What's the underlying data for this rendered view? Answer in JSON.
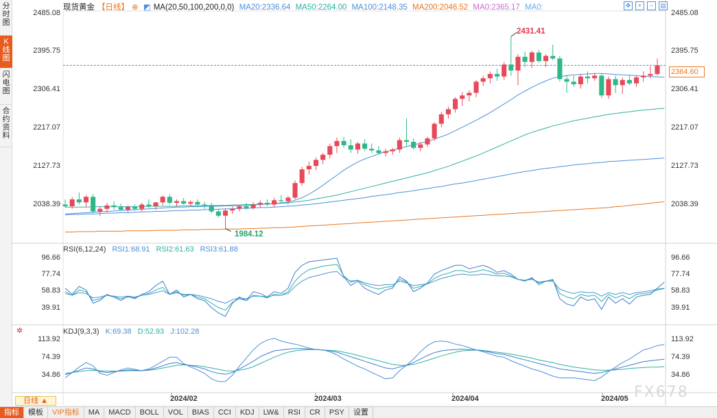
{
  "side_tabs": [
    {
      "label": "分时图",
      "chars": [
        "分",
        "时",
        "图"
      ],
      "active": false
    },
    {
      "label": "K线图",
      "chars": [
        "K",
        "线",
        "图"
      ],
      "active": true
    },
    {
      "label": "闪电图",
      "chars": [
        "闪",
        "电",
        "图"
      ],
      "active": false
    },
    {
      "label": "合约资料",
      "chars": [
        "合",
        "约",
        "资",
        "料"
      ],
      "active": false
    }
  ],
  "header": {
    "title": "现货黄金",
    "period": "【日线】",
    "ma_settings": "MA(20,50,100,200,0,0)",
    "ma20": "MA20:2336.64",
    "ma50": "MA50:2264.00",
    "ma100": "MA100:2148.35",
    "ma200": "MA200:2046.52",
    "ma0a": "MA0:2365.17",
    "ma0b": "MA0:"
  },
  "toolbar_icons": [
    "move-icon",
    "zoom-in-icon",
    "zoom-out-icon",
    "settings-icon"
  ],
  "price_axis": {
    "labels": [
      "2485.08",
      "2395.75",
      "2306.41",
      "2217.07",
      "2127.73",
      "2038.39"
    ],
    "current_price": "2364.60"
  },
  "annotations": {
    "high": "2431.41",
    "low": "1984.12"
  },
  "rsi": {
    "title": "RSI(6,12,24)",
    "rsi1": "RSI1:68.91",
    "rsi2": "RSI2:61.63",
    "rsi3": "RSI3:61.88",
    "axis": [
      "96.66",
      "77.74",
      "58.83",
      "39.91"
    ]
  },
  "kdj": {
    "title": "KDJ(9,3,3)",
    "k": "K:69.38",
    "d": "D:52.93",
    "j": "J:102.28",
    "axis": [
      "113.92",
      "74.39",
      "34.86"
    ]
  },
  "x_dates": [
    "2024/02",
    "2024/03",
    "2024/04",
    "2024/05"
  ],
  "period_button": "日线 ▲",
  "bottom_tabs": [
    {
      "label": "指标",
      "active": true,
      "vip": false
    },
    {
      "label": "模板",
      "active": false,
      "vip": false
    },
    {
      "label": "VIP指标",
      "active": false,
      "vip": true
    },
    {
      "label": "MA",
      "active": false,
      "vip": false
    },
    {
      "label": "MACD",
      "active": false,
      "vip": false
    },
    {
      "label": "BOLL",
      "active": false,
      "vip": false
    },
    {
      "label": "VOL",
      "active": false,
      "vip": false
    },
    {
      "label": "BIAS",
      "active": false,
      "vip": false
    },
    {
      "label": "CCI",
      "active": false,
      "vip": false
    },
    {
      "label": "KDJ",
      "active": false,
      "vip": false
    },
    {
      "label": "LW&",
      "active": false,
      "vip": false
    },
    {
      "label": "RSI",
      "active": false,
      "vip": false
    },
    {
      "label": "CR",
      "active": false,
      "vip": false
    },
    {
      "label": "PSY",
      "active": false,
      "vip": false
    },
    {
      "label": "设置",
      "active": false,
      "vip": false
    }
  ],
  "watermark": "FX678",
  "colors": {
    "up": "#e8495a",
    "down": "#2eb88a",
    "ma20": "#4a8fd8",
    "ma50": "#28b0a0",
    "ma100": "#4a8fd8",
    "ma200": "#e8761f",
    "accent": "#e85b1f"
  },
  "chart_data": {
    "type": "candlestick",
    "instrument": "现货黄金",
    "period": "日线",
    "ylim": [
      1965,
      2490
    ],
    "candles": [
      [
        2040,
        2052,
        2032,
        2036
      ],
      [
        2036,
        2058,
        2030,
        2052
      ],
      [
        2052,
        2068,
        2040,
        2045
      ],
      [
        2045,
        2062,
        2035,
        2058
      ],
      [
        2058,
        2065,
        2020,
        2024
      ],
      [
        2024,
        2035,
        2014,
        2030
      ],
      [
        2030,
        2044,
        2022,
        2038
      ],
      [
        2038,
        2048,
        2028,
        2034
      ],
      [
        2034,
        2042,
        2025,
        2028
      ],
      [
        2028,
        2038,
        2022,
        2035
      ],
      [
        2035,
        2040,
        2026,
        2030
      ],
      [
        2030,
        2044,
        2024,
        2040
      ],
      [
        2040,
        2052,
        2032,
        2036
      ],
      [
        2036,
        2046,
        2028,
        2045
      ],
      [
        2045,
        2062,
        2038,
        2058
      ],
      [
        2058,
        2064,
        2040,
        2044
      ],
      [
        2044,
        2052,
        2035,
        2048
      ],
      [
        2048,
        2055,
        2040,
        2042
      ],
      [
        2042,
        2050,
        2035,
        2046
      ],
      [
        2046,
        2052,
        2038,
        2040
      ],
      [
        2040,
        2046,
        2030,
        2038
      ],
      [
        2038,
        2044,
        2020,
        2024
      ],
      [
        2024,
        2030,
        2010,
        2014
      ],
      [
        2014,
        2030,
        1984,
        2026
      ],
      [
        2026,
        2035,
        2018,
        2030
      ],
      [
        2030,
        2040,
        2024,
        2036
      ],
      [
        2036,
        2044,
        2028,
        2032
      ],
      [
        2032,
        2046,
        2028,
        2040
      ],
      [
        2040,
        2050,
        2032,
        2044
      ],
      [
        2044,
        2052,
        2036,
        2040
      ],
      [
        2040,
        2056,
        2034,
        2050
      ],
      [
        2050,
        2062,
        2044,
        2048
      ],
      [
        2048,
        2060,
        2040,
        2056
      ],
      [
        2056,
        2096,
        2052,
        2090
      ],
      [
        2090,
        2128,
        2084,
        2122
      ],
      [
        2122,
        2140,
        2110,
        2130
      ],
      [
        2130,
        2150,
        2120,
        2144
      ],
      [
        2144,
        2160,
        2134,
        2156
      ],
      [
        2156,
        2182,
        2148,
        2176
      ],
      [
        2176,
        2196,
        2160,
        2188
      ],
      [
        2188,
        2198,
        2172,
        2178
      ],
      [
        2178,
        2192,
        2160,
        2168
      ],
      [
        2168,
        2186,
        2158,
        2182
      ],
      [
        2182,
        2192,
        2164,
        2170
      ],
      [
        2170,
        2182,
        2160,
        2166
      ],
      [
        2166,
        2176,
        2156,
        2160
      ],
      [
        2160,
        2170,
        2152,
        2164
      ],
      [
        2164,
        2172,
        2156,
        2168
      ],
      [
        2168,
        2196,
        2160,
        2190
      ],
      [
        2190,
        2240,
        2176,
        2186
      ],
      [
        2186,
        2194,
        2168,
        2172
      ],
      [
        2172,
        2186,
        2164,
        2180
      ],
      [
        2180,
        2198,
        2174,
        2194
      ],
      [
        2194,
        2232,
        2188,
        2228
      ],
      [
        2228,
        2256,
        2220,
        2250
      ],
      [
        2250,
        2268,
        2240,
        2262
      ],
      [
        2262,
        2290,
        2254,
        2286
      ],
      [
        2286,
        2302,
        2270,
        2294
      ],
      [
        2294,
        2306,
        2280,
        2300
      ],
      [
        2300,
        2330,
        2290,
        2326
      ],
      [
        2326,
        2340,
        2316,
        2334
      ],
      [
        2334,
        2350,
        2322,
        2344
      ],
      [
        2344,
        2356,
        2328,
        2338
      ],
      [
        2338,
        2372,
        2330,
        2366
      ],
      [
        2366,
        2431,
        2340,
        2352
      ],
      [
        2352,
        2390,
        2318,
        2384
      ],
      [
        2384,
        2396,
        2360,
        2372
      ],
      [
        2372,
        2398,
        2358,
        2394
      ],
      [
        2394,
        2400,
        2370,
        2374
      ],
      [
        2374,
        2390,
        2360,
        2386
      ],
      [
        2386,
        2412,
        2376,
        2380
      ],
      [
        2380,
        2386,
        2326,
        2332
      ],
      [
        2332,
        2342,
        2300,
        2326
      ],
      [
        2326,
        2340,
        2314,
        2320
      ],
      [
        2320,
        2344,
        2310,
        2338
      ],
      [
        2338,
        2350,
        2322,
        2334
      ],
      [
        2334,
        2346,
        2328,
        2340
      ],
      [
        2340,
        2344,
        2288,
        2294
      ],
      [
        2294,
        2338,
        2286,
        2332
      ],
      [
        2332,
        2340,
        2300,
        2318
      ],
      [
        2318,
        2336,
        2298,
        2330
      ],
      [
        2330,
        2342,
        2318,
        2322
      ],
      [
        2322,
        2340,
        2314,
        2336
      ],
      [
        2336,
        2350,
        2326,
        2340
      ],
      [
        2340,
        2362,
        2334,
        2344
      ],
      [
        2344,
        2380,
        2340,
        2364
      ]
    ],
    "ma20": [
      2018,
      2019,
      2020,
      2021,
      2022,
      2023,
      2024,
      2025,
      2026,
      2027,
      2028,
      2029,
      2030,
      2031,
      2032,
      2033,
      2034,
      2034,
      2035,
      2035,
      2036,
      2036,
      2036,
      2037,
      2037,
      2038,
      2038,
      2039,
      2040,
      2041,
      2042,
      2044,
      2046,
      2050,
      2056,
      2064,
      2074,
      2085,
      2097,
      2108,
      2120,
      2130,
      2139,
      2146,
      2152,
      2158,
      2163,
      2167,
      2171,
      2175,
      2179,
      2183,
      2187,
      2192,
      2198,
      2204,
      2212,
      2220,
      2228,
      2236,
      2245,
      2254,
      2264,
      2274,
      2284,
      2295,
      2304,
      2313,
      2321,
      2328,
      2334,
      2338,
      2340,
      2342,
      2343,
      2344,
      2345,
      2345,
      2344,
      2343,
      2342,
      2341,
      2340,
      2339,
      2338,
      2337,
      2336.64
    ],
    "ma50": [
      2034,
      2034,
      2034,
      2034,
      2035,
      2035,
      2035,
      2035,
      2035,
      2035,
      2035,
      2035,
      2036,
      2036,
      2036,
      2036,
      2036,
      2037,
      2037,
      2037,
      2037,
      2038,
      2038,
      2038,
      2039,
      2039,
      2040,
      2040,
      2041,
      2041,
      2042,
      2043,
      2044,
      2046,
      2048,
      2050,
      2053,
      2056,
      2059,
      2062,
      2066,
      2070,
      2074,
      2078,
      2082,
      2086,
      2090,
      2094,
      2098,
      2102,
      2106,
      2110,
      2114,
      2119,
      2124,
      2129,
      2135,
      2141,
      2147,
      2153,
      2160,
      2167,
      2174,
      2181,
      2188,
      2195,
      2202,
      2208,
      2213,
      2218,
      2223,
      2227,
      2231,
      2235,
      2238,
      2241,
      2244,
      2247,
      2250,
      2252,
      2254,
      2256,
      2258,
      2260,
      2261,
      2263,
      2264
    ],
    "ma100": [
      2016,
      2017,
      2017,
      2018,
      2018,
      2019,
      2020,
      2020,
      2021,
      2021,
      2022,
      2023,
      2023,
      2024,
      2024,
      2025,
      2026,
      2026,
      2027,
      2027,
      2028,
      2029,
      2029,
      2030,
      2030,
      2031,
      2031,
      2032,
      2033,
      2033,
      2034,
      2035,
      2036,
      2037,
      2039,
      2040,
      2042,
      2044,
      2046,
      2048,
      2050,
      2052,
      2054,
      2056,
      2059,
      2061,
      2063,
      2065,
      2068,
      2070,
      2072,
      2075,
      2077,
      2080,
      2082,
      2085,
      2088,
      2090,
      2093,
      2096,
      2099,
      2102,
      2105,
      2108,
      2111,
      2114,
      2117,
      2119,
      2122,
      2124,
      2126,
      2128,
      2130,
      2132,
      2134,
      2135,
      2137,
      2138,
      2140,
      2141,
      2142,
      2143,
      2144,
      2145,
      2146,
      2147,
      2148.35
    ],
    "ma200": [
      1976,
      1976,
      1977,
      1977,
      1977,
      1978,
      1978,
      1978,
      1978,
      1979,
      1979,
      1979,
      1979,
      1980,
      1980,
      1980,
      1980,
      1981,
      1981,
      1981,
      1982,
      1982,
      1982,
      1983,
      1983,
      1983,
      1984,
      1984,
      1985,
      1985,
      1986,
      1986,
      1987,
      1988,
      1989,
      1990,
      1991,
      1992,
      1993,
      1994,
      1995,
      1996,
      1997,
      1998,
      1999,
      2000,
      2001,
      2002,
      2003,
      2004,
      2005,
      2006,
      2007,
      2008,
      2009,
      2010,
      2011,
      2012,
      2013,
      2014,
      2015,
      2016,
      2017,
      2018,
      2019,
      2020,
      2021,
      2022,
      2023,
      2024,
      2025,
      2026,
      2027,
      2028,
      2029,
      2030,
      2031,
      2032,
      2033,
      2035,
      2036,
      2038,
      2040,
      2041,
      2043,
      2045,
      2046.52
    ],
    "rsi_axis": [
      39.91,
      96.66
    ],
    "rsi1": [
      62,
      55,
      64,
      60,
      45,
      48,
      55,
      52,
      48,
      53,
      50,
      55,
      58,
      65,
      70,
      55,
      60,
      52,
      55,
      50,
      48,
      40,
      34,
      30,
      45,
      52,
      48,
      58,
      56,
      52,
      58,
      56,
      62,
      80,
      88,
      92,
      93,
      94,
      95,
      96,
      75,
      65,
      70,
      62,
      58,
      55,
      60,
      62,
      75,
      70,
      58,
      62,
      68,
      78,
      82,
      85,
      88,
      88,
      84,
      86,
      88,
      85,
      80,
      82,
      78,
      72,
      70,
      74,
      66,
      70,
      72,
      50,
      44,
      42,
      52,
      48,
      50,
      38,
      52,
      45,
      50,
      44,
      52,
      54,
      55,
      62,
      68.91
    ],
    "rsi2": [
      58,
      54,
      60,
      58,
      48,
      50,
      54,
      52,
      50,
      52,
      51,
      54,
      56,
      60,
      63,
      55,
      58,
      54,
      55,
      52,
      50,
      45,
      40,
      37,
      46,
      50,
      48,
      54,
      53,
      51,
      55,
      54,
      58,
      70,
      78,
      83,
      85,
      87,
      88,
      89,
      76,
      69,
      71,
      66,
      63,
      61,
      63,
      64,
      72,
      69,
      62,
      64,
      67,
      73,
      77,
      79,
      82,
      82,
      80,
      81,
      83,
      81,
      78,
      79,
      76,
      72,
      71,
      73,
      68,
      70,
      71,
      56,
      52,
      50,
      55,
      53,
      54,
      47,
      55,
      51,
      54,
      50,
      55,
      56,
      57,
      60,
      61.63
    ],
    "rsi3": [
      56,
      54,
      57,
      56,
      51,
      52,
      54,
      53,
      52,
      53,
      52,
      54,
      55,
      57,
      59,
      55,
      57,
      55,
      55,
      54,
      52,
      50,
      47,
      45,
      49,
      51,
      50,
      53,
      53,
      52,
      54,
      54,
      56,
      64,
      70,
      74,
      76,
      78,
      80,
      81,
      74,
      70,
      71,
      68,
      66,
      65,
      66,
      66,
      70,
      68,
      65,
      66,
      67,
      70,
      73,
      75,
      77,
      78,
      77,
      77,
      78,
      77,
      76,
      76,
      75,
      72,
      71,
      72,
      69,
      70,
      70,
      61,
      58,
      56,
      58,
      57,
      57,
      53,
      57,
      55,
      57,
      55,
      57,
      58,
      59,
      61,
      61.88
    ],
    "kdj_axis": [
      34.86,
      113.92
    ],
    "k": [
      35,
      40,
      45,
      50,
      48,
      42,
      40,
      42,
      44,
      46,
      45,
      44,
      46,
      50,
      55,
      60,
      62,
      58,
      55,
      52,
      48,
      42,
      38,
      36,
      40,
      48,
      56,
      65,
      75,
      82,
      88,
      90,
      92,
      93,
      93,
      92,
      91,
      90,
      88,
      85,
      80,
      75,
      70,
      65,
      60,
      55,
      50,
      48,
      52,
      56,
      62,
      70,
      78,
      84,
      88,
      90,
      91,
      92,
      91,
      90,
      88,
      85,
      82,
      80,
      76,
      72,
      68,
      64,
      60,
      56,
      52,
      48,
      46,
      44,
      42,
      40,
      38,
      40,
      44,
      48,
      52,
      56,
      60,
      64,
      66,
      68,
      69.38
    ],
    "d": [
      38,
      40,
      42,
      44,
      45,
      44,
      43,
      43,
      43,
      44,
      44,
      44,
      45,
      47,
      50,
      53,
      56,
      57,
      56,
      55,
      53,
      50,
      47,
      44,
      43,
      45,
      48,
      53,
      60,
      67,
      74,
      80,
      85,
      88,
      90,
      91,
      91,
      90,
      89,
      88,
      85,
      82,
      78,
      74,
      70,
      66,
      62,
      58,
      56,
      56,
      58,
      62,
      67,
      72,
      77,
      81,
      85,
      88,
      89,
      90,
      89,
      87,
      85,
      83,
      81,
      78,
      75,
      72,
      68,
      65,
      62,
      58,
      55,
      52,
      50,
      48,
      46,
      45,
      45,
      46,
      47,
      49,
      50,
      51,
      52,
      52,
      52.93
    ],
    "j": [
      28,
      40,
      52,
      62,
      55,
      38,
      34,
      40,
      46,
      50,
      47,
      44,
      48,
      56,
      65,
      74,
      74,
      60,
      52,
      46,
      38,
      26,
      20,
      20,
      34,
      54,
      72,
      90,
      104,
      112,
      116,
      110,
      106,
      103,
      99,
      94,
      91,
      90,
      86,
      79,
      70,
      62,
      54,
      48,
      40,
      33,
      26,
      28,
      44,
      56,
      70,
      86,
      100,
      108,
      110,
      108,
      103,
      100,
      95,
      90,
      86,
      81,
      76,
      74,
      66,
      60,
      54,
      48,
      44,
      38,
      32,
      28,
      28,
      28,
      26,
      24,
      22,
      30,
      42,
      52,
      62,
      70,
      80,
      90,
      94,
      100,
      102.28
    ]
  }
}
